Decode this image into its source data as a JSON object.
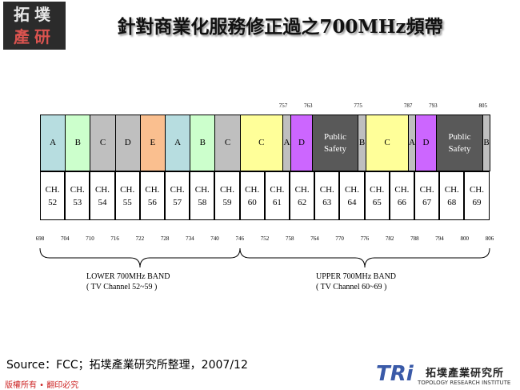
{
  "header": {
    "logo": [
      "拓墣",
      "產研"
    ],
    "title": "針對商業化服務修正過之700MHz頻帶"
  },
  "diagram": {
    "top_ticks": [
      757,
      763,
      775,
      787,
      793,
      805
    ],
    "blocks": [
      "A",
      "B",
      "C",
      "D",
      "E",
      "A",
      "B",
      "C",
      "C",
      "A",
      "D",
      "Public Safety",
      "B",
      "C",
      "A",
      "D",
      "Public Safety",
      "B"
    ],
    "channels": [
      "CH. 52",
      "CH. 53",
      "CH. 54",
      "CH. 55",
      "CH. 56",
      "CH. 57",
      "CH. 58",
      "CH. 59",
      "CH. 60",
      "CH. 61",
      "CH. 62",
      "CH. 63",
      "CH. 64",
      "CH. 65",
      "CH. 66",
      "CH. 67",
      "CH. 68",
      "CH. 69"
    ],
    "bottom_ticks": [
      698,
      704,
      710,
      716,
      722,
      728,
      734,
      740,
      746,
      752,
      758,
      764,
      770,
      776,
      782,
      788,
      794,
      800,
      806
    ],
    "bands": [
      {
        "name": "LOWER 700MHz BAND",
        "channels": "( TV Channel 52~59 )"
      },
      {
        "name": "UPPER 700MHz BAND",
        "channels": "( TV Channel 60~69 )"
      }
    ]
  },
  "source": "Source：FCC；拓墣產業研究所整理，2007/12",
  "footer": {
    "copyright": "版權所有 • 翻印必究",
    "logo_mark": "TRi",
    "logo_name": "拓墣產業研究所",
    "logo_subtitle": "TOPOLOGY RESEARCH INSTITUTE"
  }
}
